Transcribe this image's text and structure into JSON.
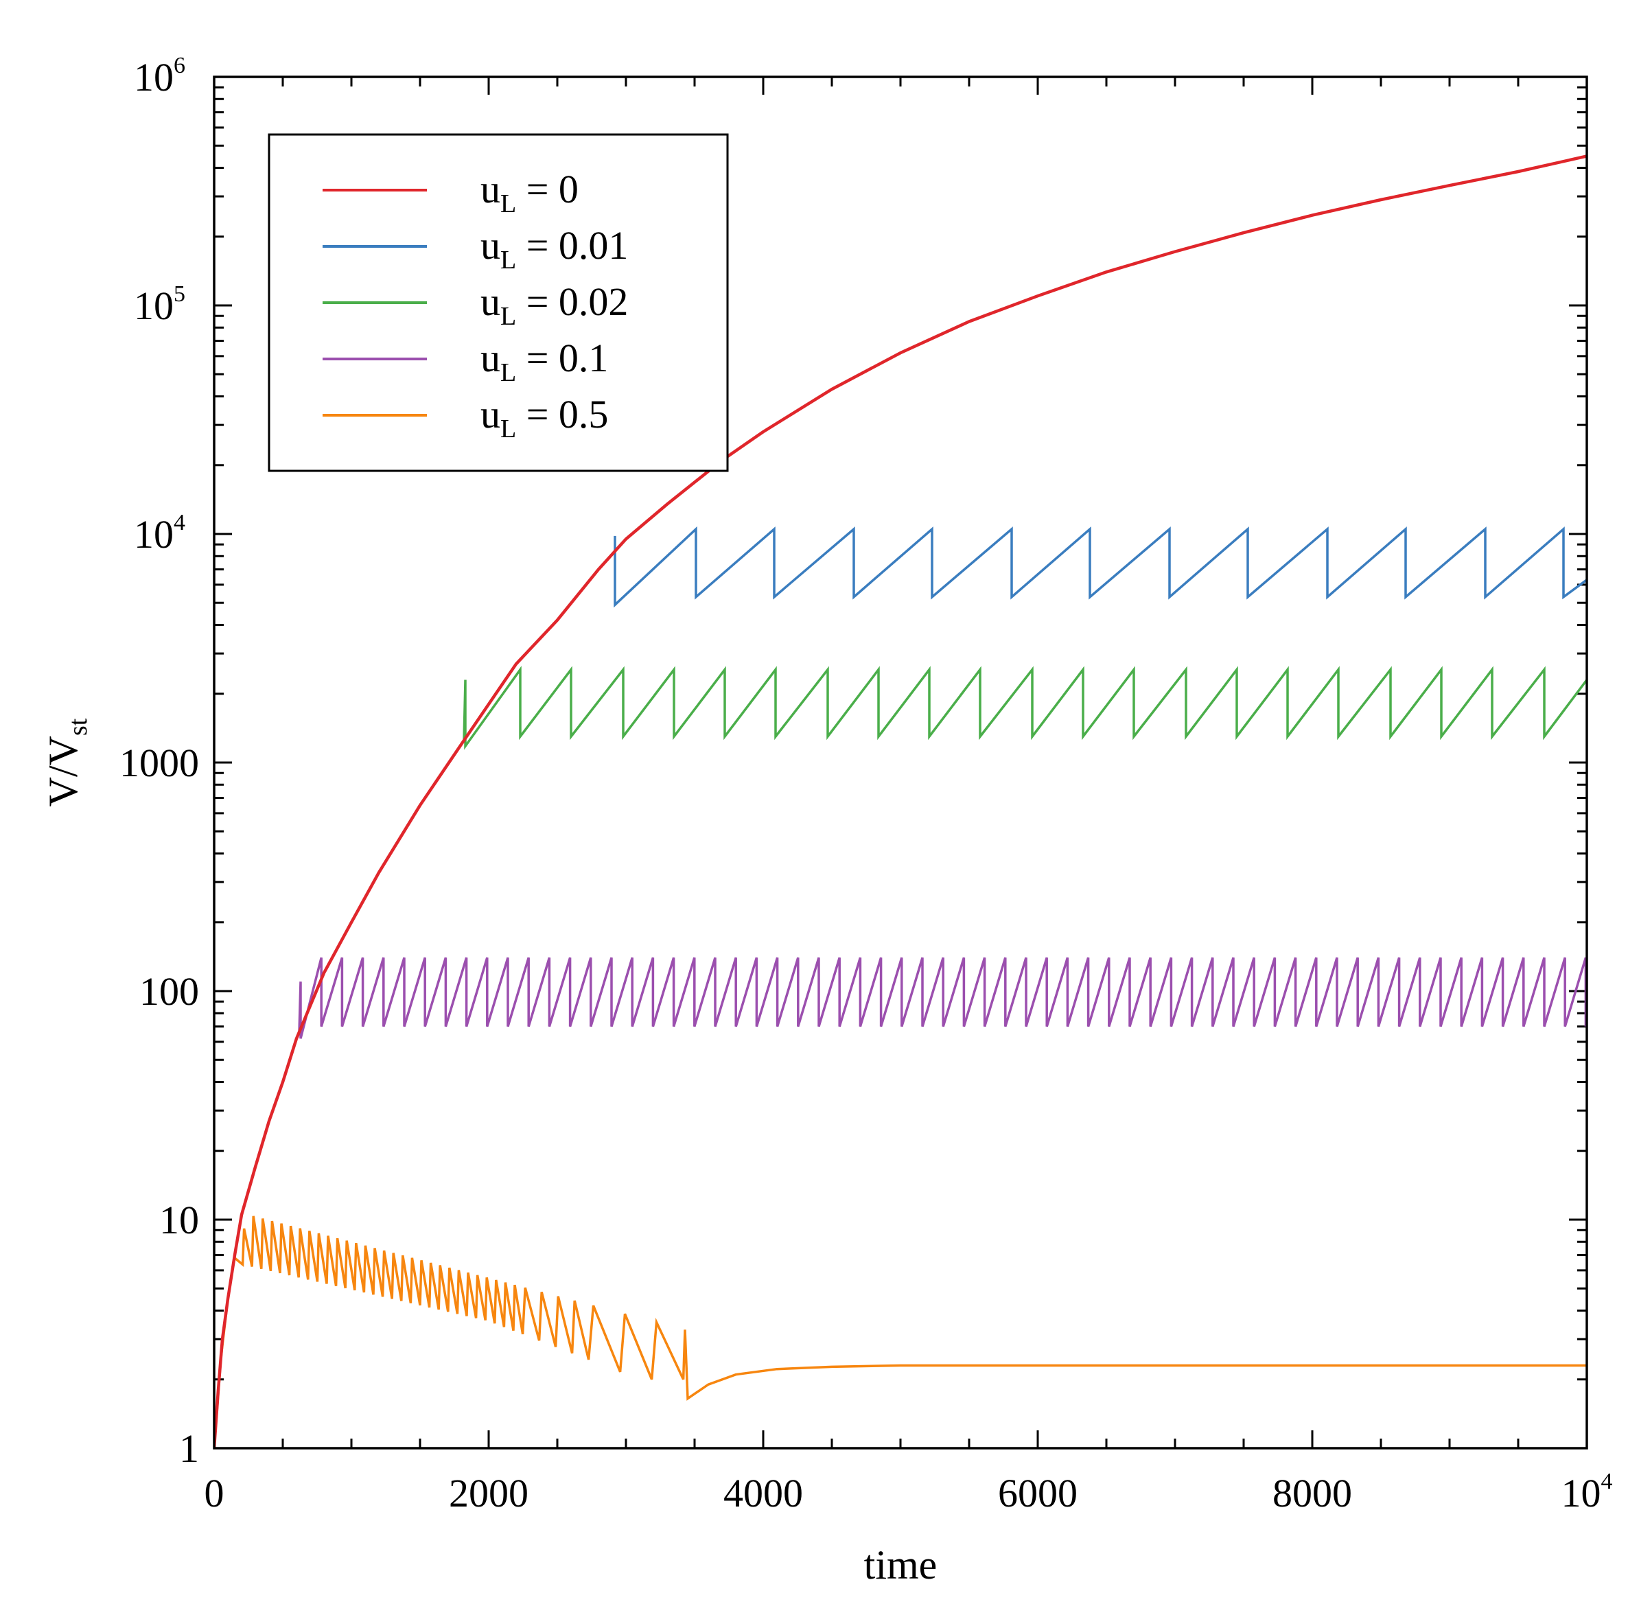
{
  "chart_data": {
    "type": "line",
    "xlabel": "time",
    "ylabel": {
      "main": "V/V",
      "sub": "st"
    },
    "xscale": "linear",
    "yscale": "log",
    "xlim": [
      0,
      10000
    ],
    "ylim": [
      1,
      1000000
    ],
    "x_ticks": [
      {
        "value": 0,
        "label": "0"
      },
      {
        "value": 2000,
        "label": "2000"
      },
      {
        "value": 4000,
        "label": "4000"
      },
      {
        "value": 6000,
        "label": "6000"
      },
      {
        "value": 8000,
        "label": "8000"
      },
      {
        "value": 10000,
        "label": "10",
        "exp": "4"
      }
    ],
    "y_ticks": [
      {
        "value": 1,
        "label": "1"
      },
      {
        "value": 10,
        "label": "10"
      },
      {
        "value": 100,
        "label": "100"
      },
      {
        "value": 1000,
        "label": "1000"
      },
      {
        "value": 10000,
        "label": "10",
        "exp": "4"
      },
      {
        "value": 100000,
        "label": "10",
        "exp": "5"
      },
      {
        "value": 1000000,
        "label": "10",
        "exp": "6"
      }
    ],
    "legend_position": "top-left",
    "series": [
      {
        "name": "u_L = 0",
        "label_main": "u",
        "label_sub": "L",
        "label_rest": " = 0",
        "color": "#e0262b",
        "kind": "growth",
        "points": [
          [
            0,
            1
          ],
          [
            30,
            1.8
          ],
          [
            60,
            3
          ],
          [
            100,
            4.5
          ],
          [
            150,
            7
          ],
          [
            200,
            10.5
          ],
          [
            300,
            17
          ],
          [
            400,
            27
          ],
          [
            500,
            40
          ],
          [
            600,
            62
          ],
          [
            800,
            120
          ],
          [
            1000,
            200
          ],
          [
            1200,
            330
          ],
          [
            1500,
            650
          ],
          [
            1800,
            1200
          ],
          [
            2000,
            1800
          ],
          [
            2200,
            2700
          ],
          [
            2500,
            4200
          ],
          [
            2800,
            7000
          ],
          [
            3000,
            9500
          ],
          [
            3300,
            13500
          ],
          [
            3700,
            21000
          ],
          [
            4000,
            28000
          ],
          [
            4500,
            43000
          ],
          [
            5000,
            62000
          ],
          [
            5500,
            85000
          ],
          [
            6000,
            110000
          ],
          [
            6500,
            140000
          ],
          [
            7000,
            172000
          ],
          [
            7500,
            208000
          ],
          [
            8000,
            248000
          ],
          [
            8500,
            290000
          ],
          [
            9000,
            335000
          ],
          [
            9500,
            385000
          ],
          [
            10000,
            450000
          ]
        ]
      },
      {
        "name": "u_L = 0.01",
        "label_main": "u",
        "label_sub": "L",
        "label_rest": " = 0.01",
        "color": "#3a7dbf",
        "kind": "sawtooth",
        "start": 2920,
        "start_peak": 9800,
        "low": 5300,
        "high": 10500,
        "first_low": 4900,
        "drops": [
          2920,
          3510,
          4080,
          4660,
          5230,
          5810,
          6380,
          6960,
          7530,
          8110,
          8680,
          9260,
          9830
        ],
        "end_value": 6300
      },
      {
        "name": "u_L = 0.02",
        "label_main": "u",
        "label_sub": "L",
        "label_rest": " = 0.02",
        "color": "#4aae4a",
        "kind": "sawtooth",
        "start": 1830,
        "start_peak": 2300,
        "low": 1300,
        "high": 2550,
        "first_low": 1180,
        "drops": [
          1830,
          2230,
          2600,
          2980,
          3350,
          3720,
          4090,
          4470,
          4840,
          5210,
          5580,
          5960,
          6330,
          6700,
          7080,
          7450,
          7820,
          8190,
          8570,
          8940,
          9310,
          9690
        ],
        "end_value": 2300
      },
      {
        "name": "u_L = 0.1",
        "label_main": "u",
        "label_sub": "L",
        "label_rest": " = 0.1",
        "color": "#9b4fae",
        "kind": "sawtooth",
        "start": 630,
        "start_peak": 110,
        "low": 70,
        "high": 140,
        "first_low": 62,
        "period": 151,
        "end_value": 120
      },
      {
        "name": "u_L = 0.5",
        "label_main": "u",
        "label_sub": "L",
        "label_rest": " = 0.5",
        "color": "#f7860f",
        "kind": "decaying-sawtooth",
        "initial": [
          [
            0,
            1
          ],
          [
            50,
            2.5
          ],
          [
            100,
            4.5
          ],
          [
            140,
            6.5
          ]
        ],
        "peaks": [
          [
            140,
            6.5
          ],
          [
            250,
            10.5
          ],
          [
            3430,
            3.3
          ]
        ],
        "troughs": [
          [
            140,
            6.5
          ],
          [
            2000,
            3.6
          ],
          [
            3100,
            2.0
          ]
        ],
        "tail": [
          [
            3450,
            1.65
          ],
          [
            3600,
            1.9
          ],
          [
            3800,
            2.1
          ],
          [
            4100,
            2.22
          ],
          [
            4500,
            2.27
          ],
          [
            5000,
            2.3
          ],
          [
            10000,
            2.3
          ]
        ]
      }
    ]
  }
}
